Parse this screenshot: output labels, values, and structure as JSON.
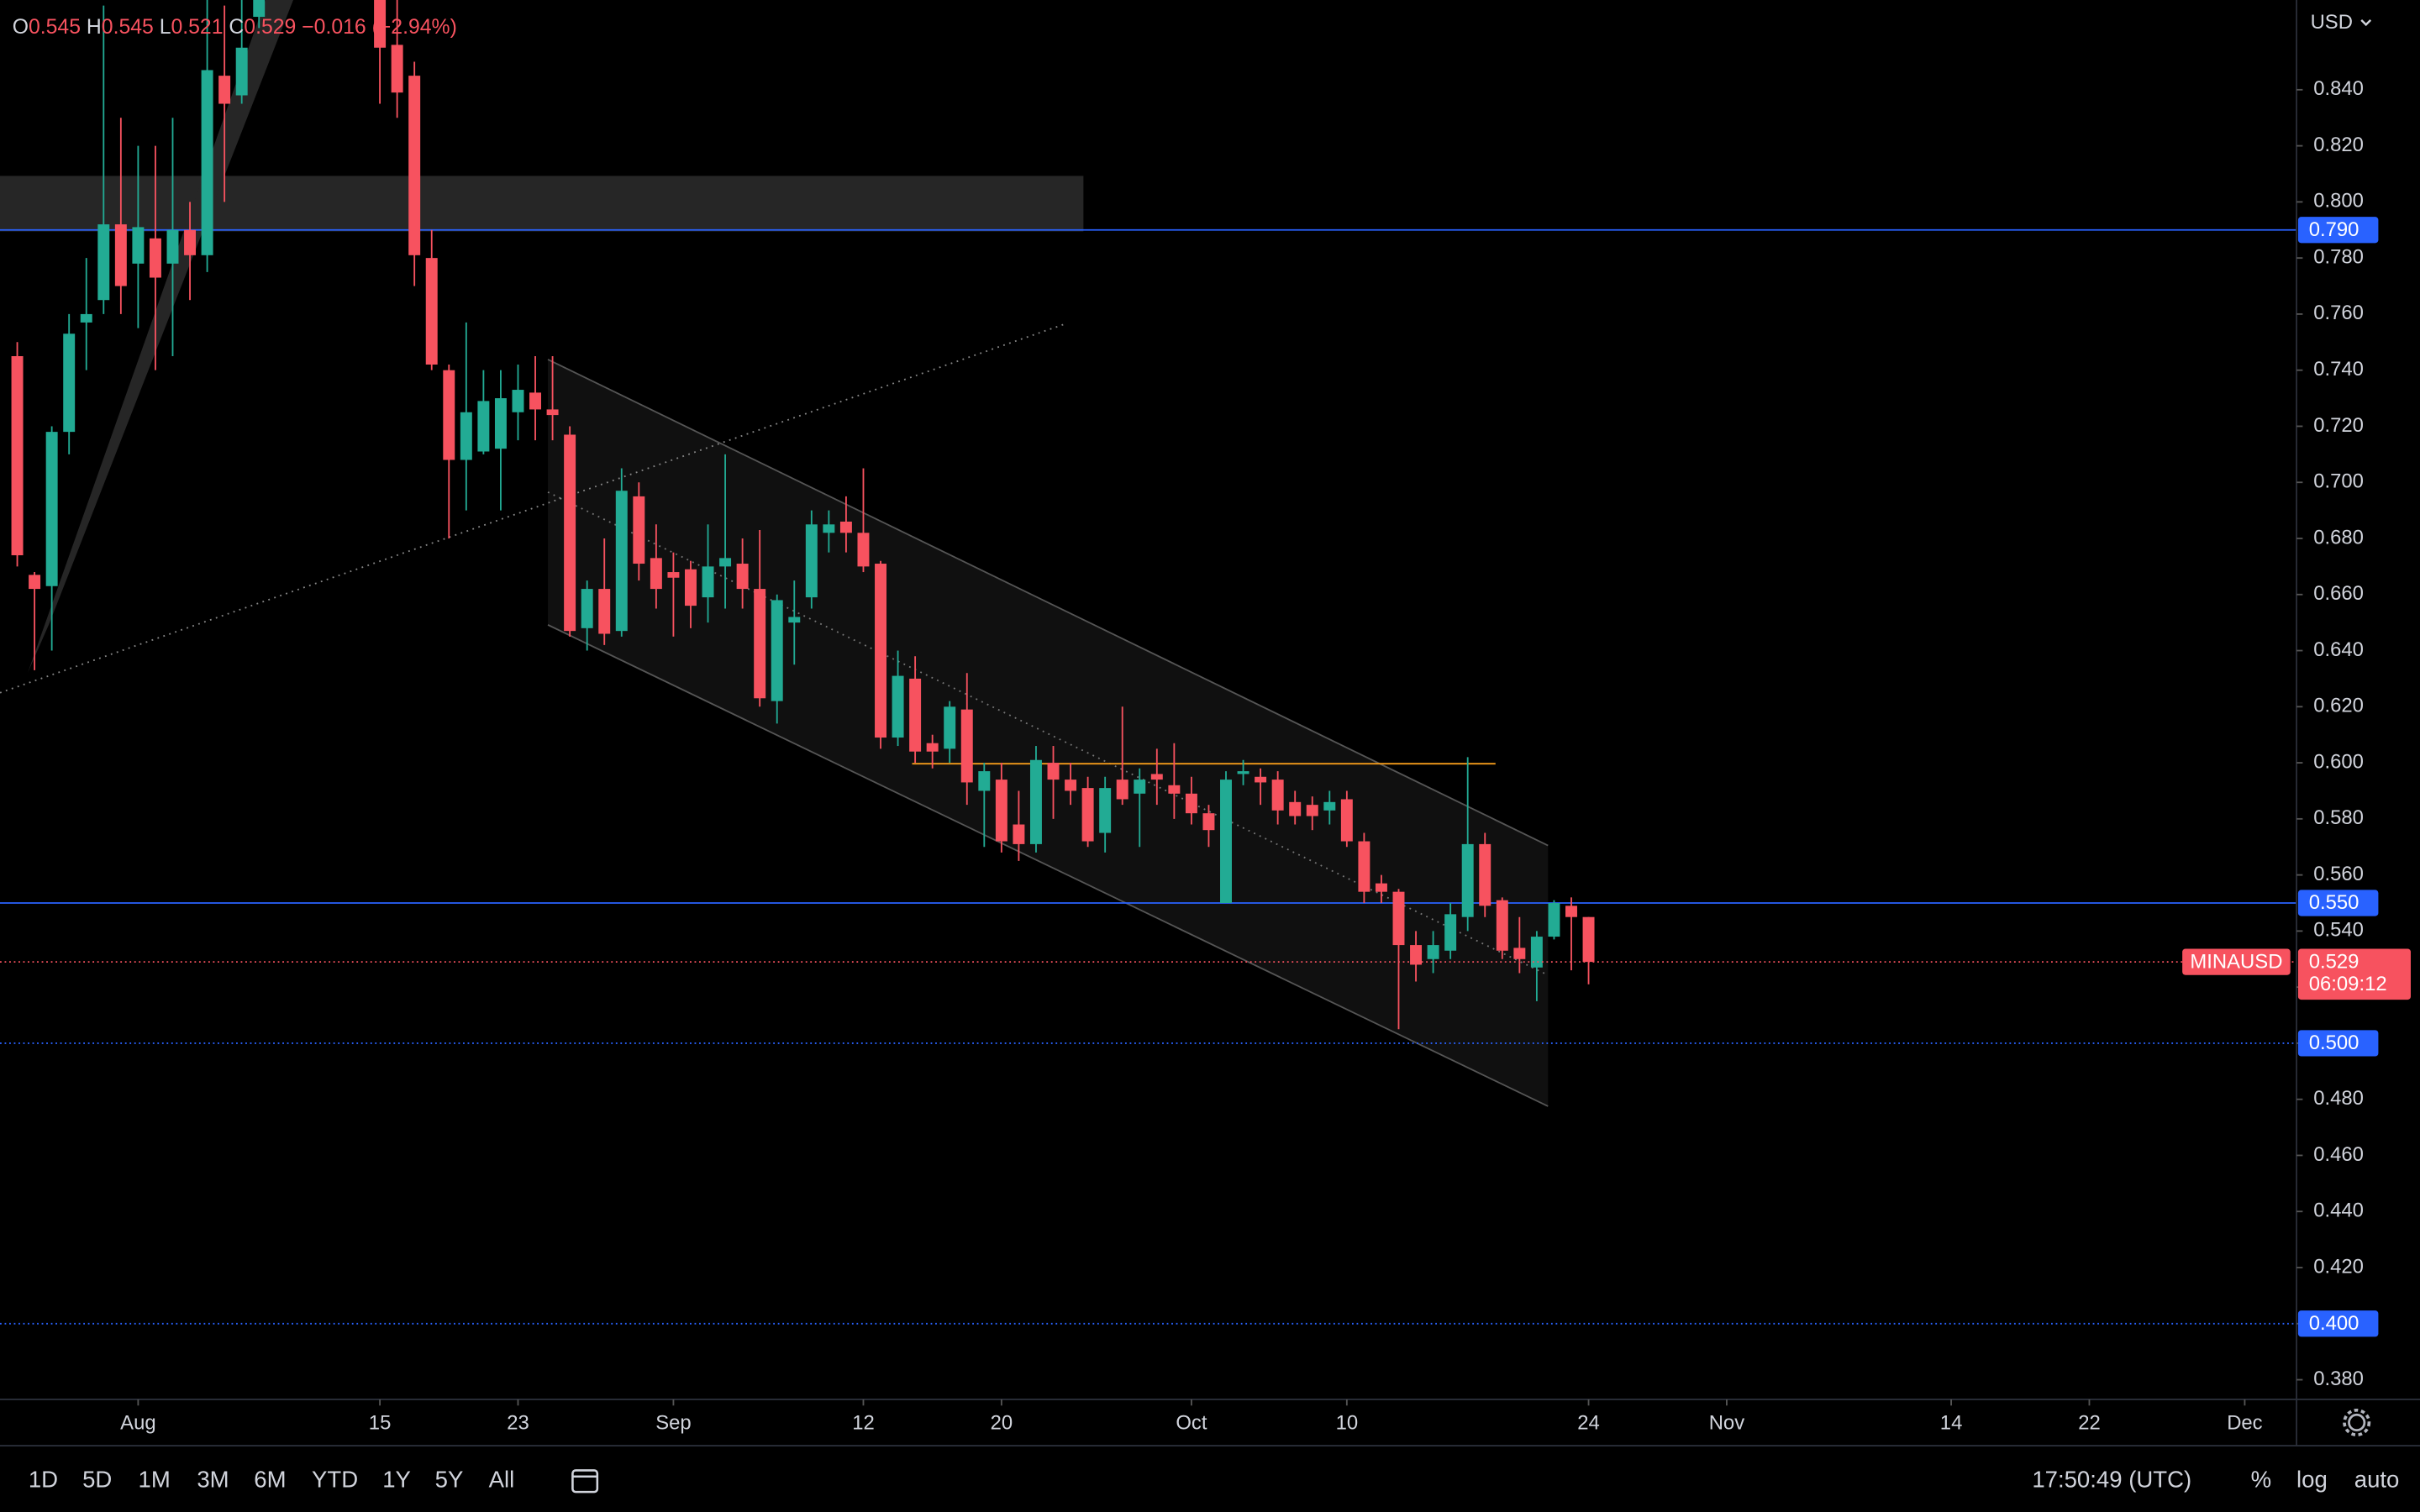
{
  "header": {
    "labels": [
      "O",
      "H",
      "L",
      "C"
    ],
    "change": "−0.016 (−2.94%)"
  },
  "currency": "USD",
  "price_tag": {
    "countdown": "06:09:12"
  },
  "toolbar": {
    "ranges": [
      "1D",
      "5D",
      "1M",
      "3M",
      "6M",
      "YTD",
      "1Y",
      "5Y",
      "All"
    ],
    "time": "17:50:49 (UTC)",
    "options": [
      "%",
      "log",
      "auto"
    ]
  },
  "chart_data": {
    "type": "candlestick",
    "up_color": "#22ab94",
    "down_color": "#f7525f",
    "xlim": [
      "Jul 24",
      "Dec 4"
    ],
    "ylim": [
      0.373,
      0.872
    ],
    "xticks": [
      {
        "value": "Aug 1",
        "label": "Aug"
      },
      {
        "value": "Aug 15",
        "label": "15"
      },
      {
        "value": "Aug 23",
        "label": "23"
      },
      {
        "value": "Sep 1",
        "label": "Sep"
      },
      {
        "value": "Sep 12",
        "label": "12"
      },
      {
        "value": "Sep 20",
        "label": "20"
      },
      {
        "value": "Oct 1",
        "label": "Oct"
      },
      {
        "value": "Oct 10",
        "label": "10"
      },
      {
        "value": "Oct 24",
        "label": "24"
      },
      {
        "value": "Nov 1",
        "label": "Nov"
      },
      {
        "value": "Nov 14",
        "label": "14"
      },
      {
        "value": "Nov 22",
        "label": "22"
      },
      {
        "value": "Dec 1",
        "label": "Dec"
      }
    ],
    "yticks": [
      {
        "value": 0.38,
        "label": "0.380"
      },
      {
        "value": 0.4,
        "label": "0.400"
      },
      {
        "value": 0.42,
        "label": "0.420"
      },
      {
        "value": 0.44,
        "label": "0.440"
      },
      {
        "value": 0.46,
        "label": "0.460"
      },
      {
        "value": 0.48,
        "label": "0.480"
      },
      {
        "value": 0.5,
        "label": "0.500"
      },
      {
        "value": 0.52,
        "label": "0.520"
      },
      {
        "value": 0.54,
        "label": "0.540"
      },
      {
        "value": 0.56,
        "label": "0.560"
      },
      {
        "value": 0.58,
        "label": "0.580"
      },
      {
        "value": 0.6,
        "label": "0.600"
      },
      {
        "value": 0.62,
        "label": "0.620"
      },
      {
        "value": 0.64,
        "label": "0.640"
      },
      {
        "value": 0.66,
        "label": "0.660"
      },
      {
        "value": 0.68,
        "label": "0.680"
      },
      {
        "value": 0.7,
        "label": "0.700"
      },
      {
        "value": 0.72,
        "label": "0.720"
      },
      {
        "value": 0.74,
        "label": "0.740"
      },
      {
        "value": 0.76,
        "label": "0.760"
      },
      {
        "value": 0.78,
        "label": "0.780"
      },
      {
        "value": 0.8,
        "label": "0.800"
      },
      {
        "value": 0.82,
        "label": "0.820"
      },
      {
        "value": 0.84,
        "label": "0.840"
      }
    ],
    "levels": [
      {
        "value": 0.79,
        "label": "0.790",
        "style": "solid"
      },
      {
        "value": 0.55,
        "label": "0.550",
        "style": "solid"
      },
      {
        "value": 0.5,
        "label": "0.500",
        "style": "dotted"
      },
      {
        "value": 0.4,
        "label": "0.400",
        "style": "dotted"
      }
    ],
    "level_color": "#2962ff",
    "x": [
      "Jul 25",
      "Jul 26",
      "Jul 27",
      "Jul 28",
      "Jul 29",
      "Jul 30",
      "Jul 31",
      "Aug 1",
      "Aug 2",
      "Aug 3",
      "Aug 4",
      "Aug 5",
      "Aug 6",
      "Aug 7",
      "Aug 8",
      "Aug 15",
      "Aug 16",
      "Aug 17",
      "Aug 18",
      "Aug 19",
      "Aug 20",
      "Aug 21",
      "Aug 22",
      "Aug 23",
      "Aug 24",
      "Aug 25",
      "Aug 26",
      "Aug 27",
      "Aug 28",
      "Aug 29",
      "Aug 30",
      "Aug 31",
      "Sep 1",
      "Sep 2",
      "Sep 3",
      "Sep 4",
      "Sep 5",
      "Sep 6",
      "Sep 7",
      "Sep 8",
      "Sep 9",
      "Sep 10",
      "Sep 11",
      "Sep 12",
      "Sep 13",
      "Sep 14",
      "Sep 15",
      "Sep 16",
      "Sep 17",
      "Sep 18",
      "Sep 19",
      "Sep 20",
      "Sep 21",
      "Sep 22",
      "Sep 23",
      "Sep 24",
      "Sep 25",
      "Sep 26",
      "Sep 27",
      "Sep 28",
      "Sep 29",
      "Sep 30",
      "Oct 1",
      "Oct 2",
      "Oct 3",
      "Oct 4",
      "Oct 5",
      "Oct 6",
      "Oct 7",
      "Oct 8",
      "Oct 9",
      "Oct 10",
      "Oct 11",
      "Oct 12",
      "Oct 13",
      "Oct 14",
      "Oct 15",
      "Oct 16",
      "Oct 17",
      "Oct 18",
      "Oct 19",
      "Oct 20",
      "Oct 21",
      "Oct 22",
      "Oct 23",
      "Oct 24"
    ],
    "series": [
      {
        "name": "MINAUSD",
        "open": [
          0.745,
          0.667,
          0.663,
          0.718,
          0.757,
          0.765,
          0.792,
          0.778,
          0.787,
          0.778,
          0.79,
          0.781,
          0.845,
          0.838,
          0.866,
          0.872,
          0.856,
          0.845,
          0.78,
          0.74,
          0.708,
          0.711,
          0.712,
          0.725,
          0.732,
          0.726,
          0.717,
          0.648,
          0.662,
          0.647,
          0.695,
          0.673,
          0.668,
          0.669,
          0.659,
          0.67,
          0.671,
          0.662,
          0.622,
          0.65,
          0.659,
          0.682,
          0.686,
          0.682,
          0.671,
          0.609,
          0.63,
          0.607,
          0.605,
          0.619,
          0.59,
          0.594,
          0.578,
          0.571,
          0.6,
          0.594,
          0.591,
          0.575,
          0.594,
          0.589,
          0.596,
          0.592,
          0.589,
          0.582,
          0.55,
          0.596,
          0.595,
          0.594,
          0.586,
          0.585,
          0.583,
          0.587,
          0.572,
          0.557,
          0.554,
          0.535,
          0.53,
          0.533,
          0.545,
          0.571,
          0.551,
          0.534,
          0.527,
          0.538,
          0.549,
          0.545
        ],
        "high": [
          0.75,
          0.668,
          0.72,
          0.76,
          0.78,
          0.87,
          0.83,
          0.82,
          0.82,
          0.83,
          0.8,
          0.872,
          0.87,
          0.872,
          0.872,
          0.872,
          0.872,
          0.85,
          0.79,
          0.742,
          0.757,
          0.74,
          0.74,
          0.742,
          0.745,
          0.745,
          0.72,
          0.665,
          0.68,
          0.705,
          0.7,
          0.685,
          0.675,
          0.672,
          0.685,
          0.71,
          0.68,
          0.683,
          0.66,
          0.665,
          0.69,
          0.69,
          0.695,
          0.705,
          0.672,
          0.64,
          0.638,
          0.61,
          0.622,
          0.632,
          0.6,
          0.6,
          0.59,
          0.606,
          0.606,
          0.6,
          0.595,
          0.595,
          0.62,
          0.598,
          0.605,
          0.607,
          0.595,
          0.585,
          0.597,
          0.601,
          0.598,
          0.597,
          0.59,
          0.588,
          0.59,
          0.59,
          0.575,
          0.56,
          0.555,
          0.54,
          0.54,
          0.55,
          0.602,
          0.575,
          0.552,
          0.545,
          0.54,
          0.551,
          0.552,
          0.545
        ],
        "low": [
          0.67,
          0.633,
          0.64,
          0.71,
          0.74,
          0.76,
          0.76,
          0.755,
          0.74,
          0.745,
          0.765,
          0.775,
          0.8,
          0.835,
          0.862,
          0.835,
          0.83,
          0.77,
          0.74,
          0.68,
          0.69,
          0.71,
          0.69,
          0.715,
          0.715,
          0.715,
          0.645,
          0.64,
          0.642,
          0.645,
          0.665,
          0.655,
          0.645,
          0.648,
          0.65,
          0.655,
          0.655,
          0.62,
          0.614,
          0.635,
          0.655,
          0.675,
          0.675,
          0.668,
          0.605,
          0.606,
          0.6,
          0.598,
          0.6,
          0.585,
          0.57,
          0.568,
          0.565,
          0.568,
          0.58,
          0.585,
          0.57,
          0.568,
          0.585,
          0.57,
          0.585,
          0.58,
          0.578,
          0.57,
          0.55,
          0.592,
          0.585,
          0.578,
          0.578,
          0.576,
          0.578,
          0.57,
          0.55,
          0.55,
          0.505,
          0.522,
          0.525,
          0.53,
          0.54,
          0.545,
          0.53,
          0.525,
          0.515,
          0.537,
          0.526,
          0.521
        ],
        "close": [
          0.674,
          0.662,
          0.718,
          0.753,
          0.76,
          0.792,
          0.77,
          0.791,
          0.773,
          0.79,
          0.781,
          0.847,
          0.835,
          0.855,
          0.872,
          0.855,
          0.839,
          0.781,
          0.742,
          0.708,
          0.725,
          0.729,
          0.73,
          0.733,
          0.726,
          0.724,
          0.647,
          0.662,
          0.646,
          0.697,
          0.671,
          0.662,
          0.666,
          0.656,
          0.67,
          0.673,
          0.662,
          0.623,
          0.658,
          0.652,
          0.685,
          0.685,
          0.682,
          0.67,
          0.609,
          0.631,
          0.604,
          0.604,
          0.62,
          0.593,
          0.597,
          0.572,
          0.571,
          0.601,
          0.594,
          0.59,
          0.572,
          0.591,
          0.587,
          0.594,
          0.594,
          0.589,
          0.582,
          0.576,
          0.594,
          0.597,
          0.593,
          0.583,
          0.581,
          0.581,
          0.586,
          0.572,
          0.554,
          0.554,
          0.535,
          0.528,
          0.535,
          0.546,
          0.571,
          0.549,
          0.533,
          0.53,
          0.538,
          0.55,
          0.545,
          0.529
        ]
      }
    ]
  }
}
